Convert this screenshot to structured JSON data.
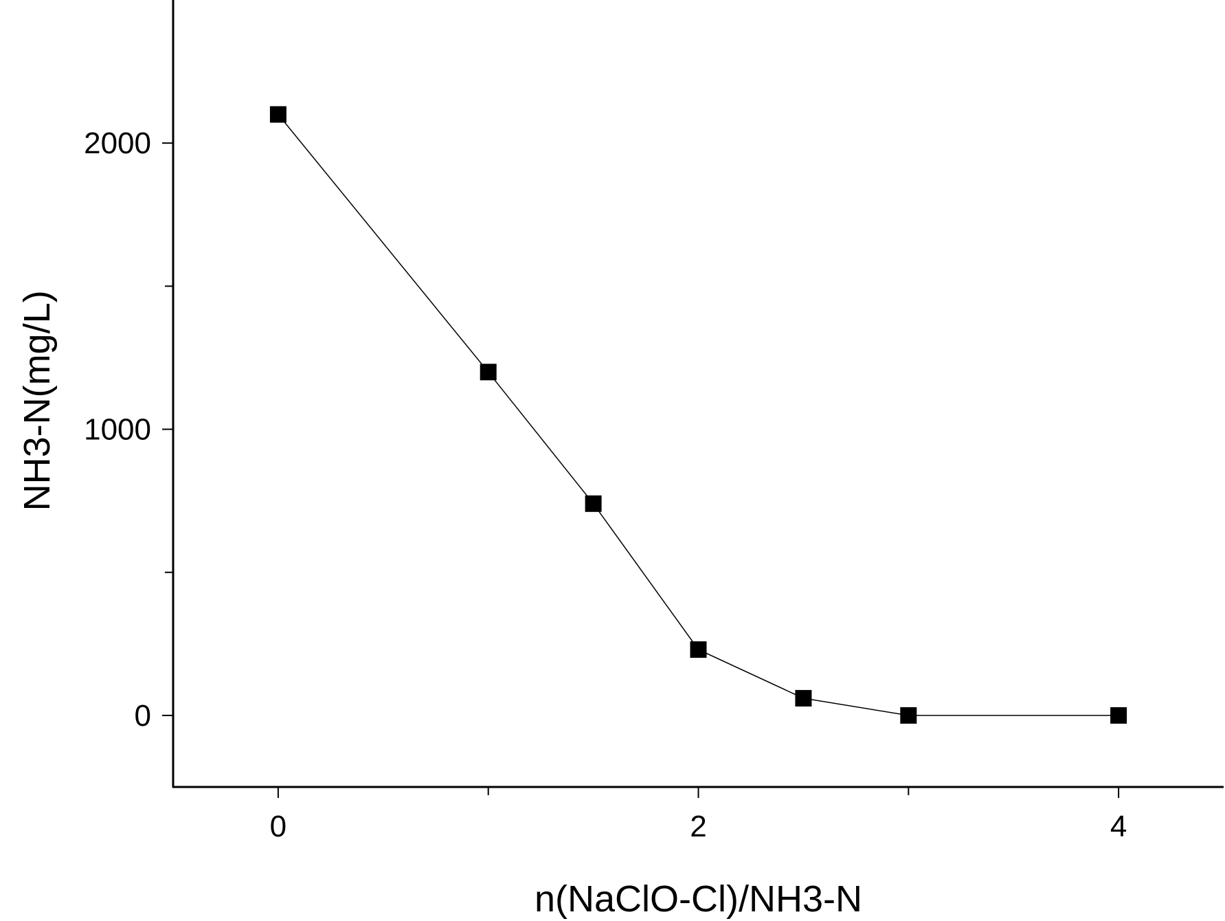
{
  "chart_data": {
    "type": "line",
    "title": "",
    "xlabel": "n(NaClO-Cl)/NH3-N",
    "ylabel": "NH3-N(mg/L)",
    "xlim": [
      -0.5,
      4.5
    ],
    "ylim": [
      -250,
      2500
    ],
    "x_ticks": [
      0,
      1,
      2,
      3,
      4
    ],
    "x_tick_labels": [
      "0",
      "2",
      "4"
    ],
    "x_labeled_ticks": [
      0,
      2,
      4
    ],
    "y_ticks": [
      0,
      500,
      1000,
      1500,
      2000
    ],
    "y_tick_labels": [
      "0",
      "1000",
      "2000"
    ],
    "y_labeled_ticks": [
      0,
      1000,
      2000
    ],
    "grid": false,
    "legend": "none",
    "series": [
      {
        "marker": "square",
        "color": "#000000",
        "x": [
          0,
          1,
          1.5,
          2,
          2.5,
          3,
          4
        ],
        "y": [
          2100,
          1200,
          740,
          230,
          60,
          0,
          0
        ]
      }
    ]
  }
}
